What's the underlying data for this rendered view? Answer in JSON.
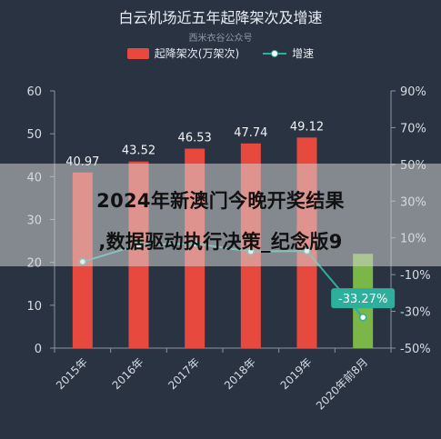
{
  "chart_data": {
    "type": "bar",
    "title": "白云机场近五年起降架次及增速",
    "subtitle": "西米衣谷公众号",
    "categories": [
      "2015年",
      "2016年",
      "2017年",
      "2018年",
      "2019年",
      "2020年前8月"
    ],
    "series": [
      {
        "name": "起降架次(万架次)",
        "type": "bar",
        "axis": "left",
        "values": [
          40.97,
          43.52,
          46.53,
          47.74,
          49.12,
          22.0
        ],
        "data_labels": [
          "40.97",
          "43.52",
          "46.53",
          "47.74",
          "49.12",
          ""
        ],
        "color": "#e8493f",
        "last_bar_color": "#7ab648"
      },
      {
        "name": "增速",
        "type": "line",
        "axis": "right",
        "values": [
          -3.0,
          6.22,
          6.92,
          2.6,
          2.89,
          -33.27
        ],
        "value_unit": "%",
        "data_labels": [
          "",
          "",
          "",
          "",
          "",
          "-33.27%"
        ],
        "color": "#2eaf9c"
      }
    ],
    "y_left": {
      "ylim": [
        0,
        60
      ],
      "ticks": [
        "0",
        "10",
        "20",
        "30",
        "40",
        "50",
        "60"
      ]
    },
    "y_right": {
      "ylim": [
        -50,
        90
      ],
      "ticks": [
        "-50%",
        "-30%",
        "-10%",
        "10%",
        "30%",
        "50%",
        "70%",
        "90%"
      ]
    },
    "grid": false,
    "legend": "top-center"
  },
  "overlay": {
    "line1": "2024年新澳门今晚开奖结果",
    "line2": ",数据驱动执行决策_纪念版9"
  }
}
